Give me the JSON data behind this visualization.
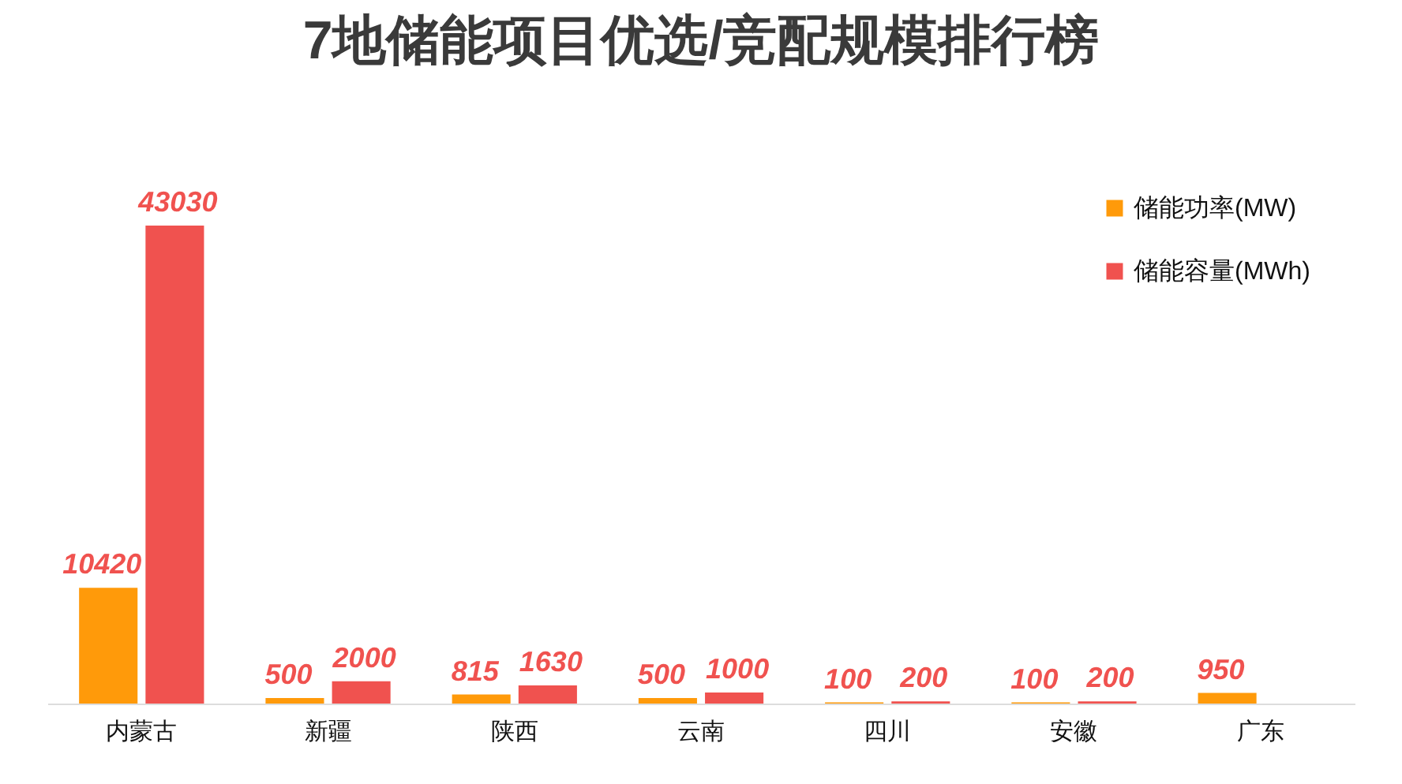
{
  "chart_data": {
    "type": "bar",
    "title": "7地储能项目优选/竞配规模排行榜",
    "categories": [
      "内蒙古",
      "新疆",
      "陕西",
      "云南",
      "四川",
      "安徽",
      "广东"
    ],
    "series": [
      {
        "name": "储能功率(MW)",
        "color": "#ff9a0a",
        "values": [
          10420,
          500,
          815,
          500,
          100,
          100,
          950
        ]
      },
      {
        "name": "储能容量(MWh)",
        "color": "#f0524f",
        "values": [
          43030,
          2000,
          1630,
          1000,
          200,
          200,
          null
        ]
      }
    ],
    "tick_labels": "x",
    "data_labels": true,
    "legend": "top right"
  }
}
